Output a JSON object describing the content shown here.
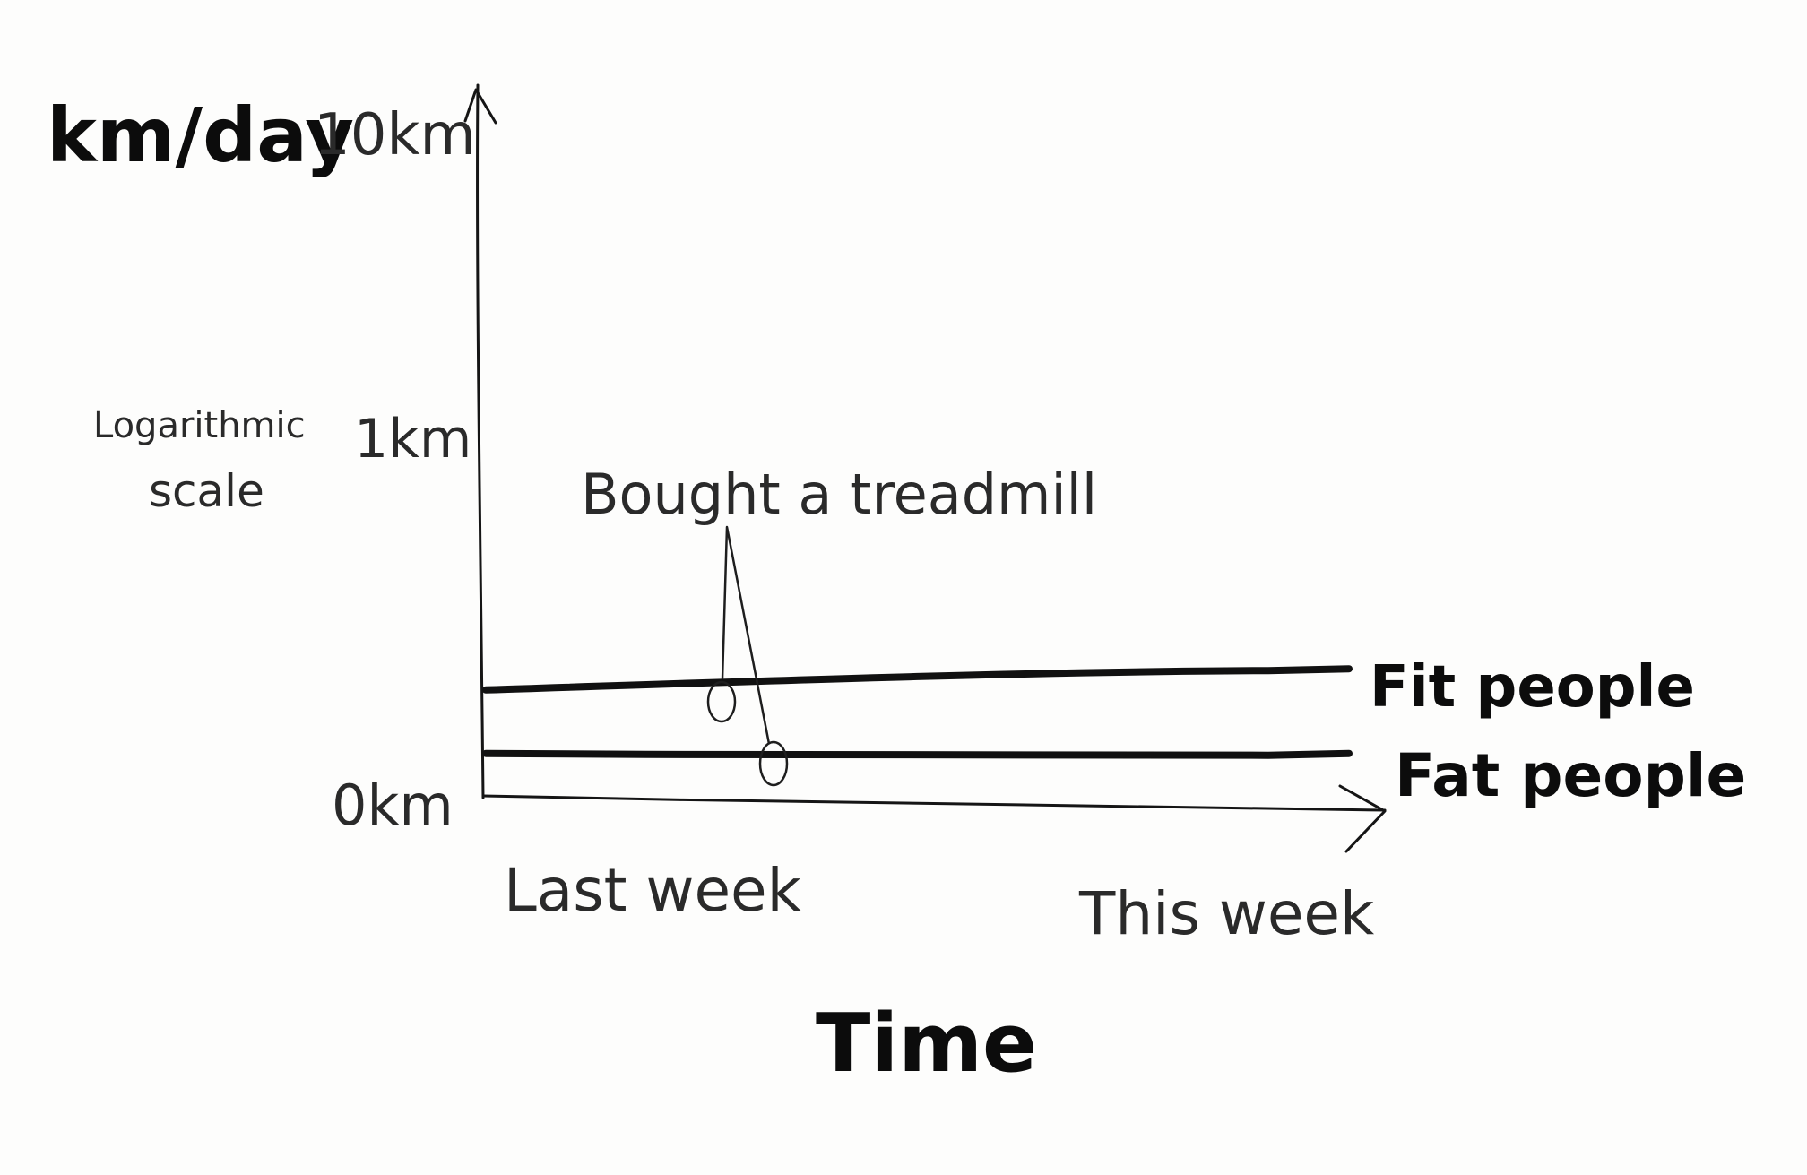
{
  "chart_data": {
    "type": "line",
    "title": "",
    "xlabel": "Time",
    "ylabel": "km/day",
    "yscale": "log",
    "yscale_note": [
      "Logarithmic",
      "scale"
    ],
    "y_ticks": [
      {
        "label": "0km"
      },
      {
        "label": "1km"
      },
      {
        "label": "10km"
      }
    ],
    "x_ticks": [
      {
        "label": "Last week"
      },
      {
        "label": "This week"
      }
    ],
    "series": [
      {
        "name": "Fit people",
        "start_level": 0.15,
        "end_level": 0.18
      },
      {
        "name": "Fat people",
        "start_level": 0.06,
        "end_level": 0.06
      }
    ],
    "annotation": {
      "text": "Bought a treadmill"
    },
    "colors": {
      "ink": "#111111",
      "paper": "#fdfdfc"
    }
  }
}
